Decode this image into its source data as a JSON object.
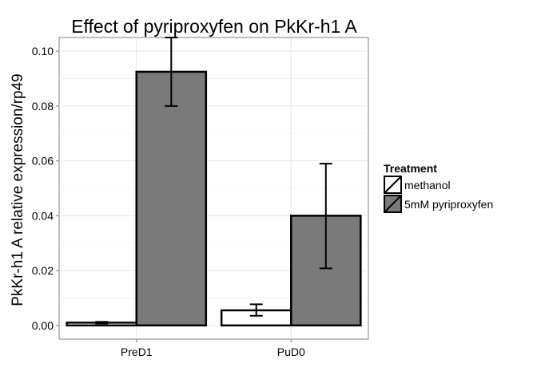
{
  "chart_data": {
    "type": "bar",
    "title": "Effect of pyriproxyfen on PkKr-h1 A",
    "xlabel": "",
    "ylabel": "PkKr-h1 A relative expression/rp49",
    "categories": [
      "PreD1",
      "PuD0"
    ],
    "ylim": [
      -0.005,
      0.105
    ],
    "yticks": [
      0.0,
      0.02,
      0.04,
      0.06,
      0.08,
      0.1
    ],
    "ytick_labels": [
      "0.00",
      "0.02",
      "0.04",
      "0.06",
      "0.08",
      "0.10"
    ],
    "grid": true,
    "legend_position": "right",
    "legend_title": "Treatment",
    "series": [
      {
        "name": "methanol",
        "color": "#ffffff",
        "values": [
          0.001,
          0.0055
        ],
        "error_low": [
          0.0007,
          0.0035
        ],
        "error_high": [
          0.0013,
          0.0077
        ]
      },
      {
        "name": "5mM pyriproxyfen",
        "color": "#7a7a7a",
        "values": [
          0.0925,
          0.04
        ],
        "error_low": [
          0.08,
          0.0208
        ],
        "error_high": [
          0.105,
          0.059
        ]
      }
    ]
  }
}
